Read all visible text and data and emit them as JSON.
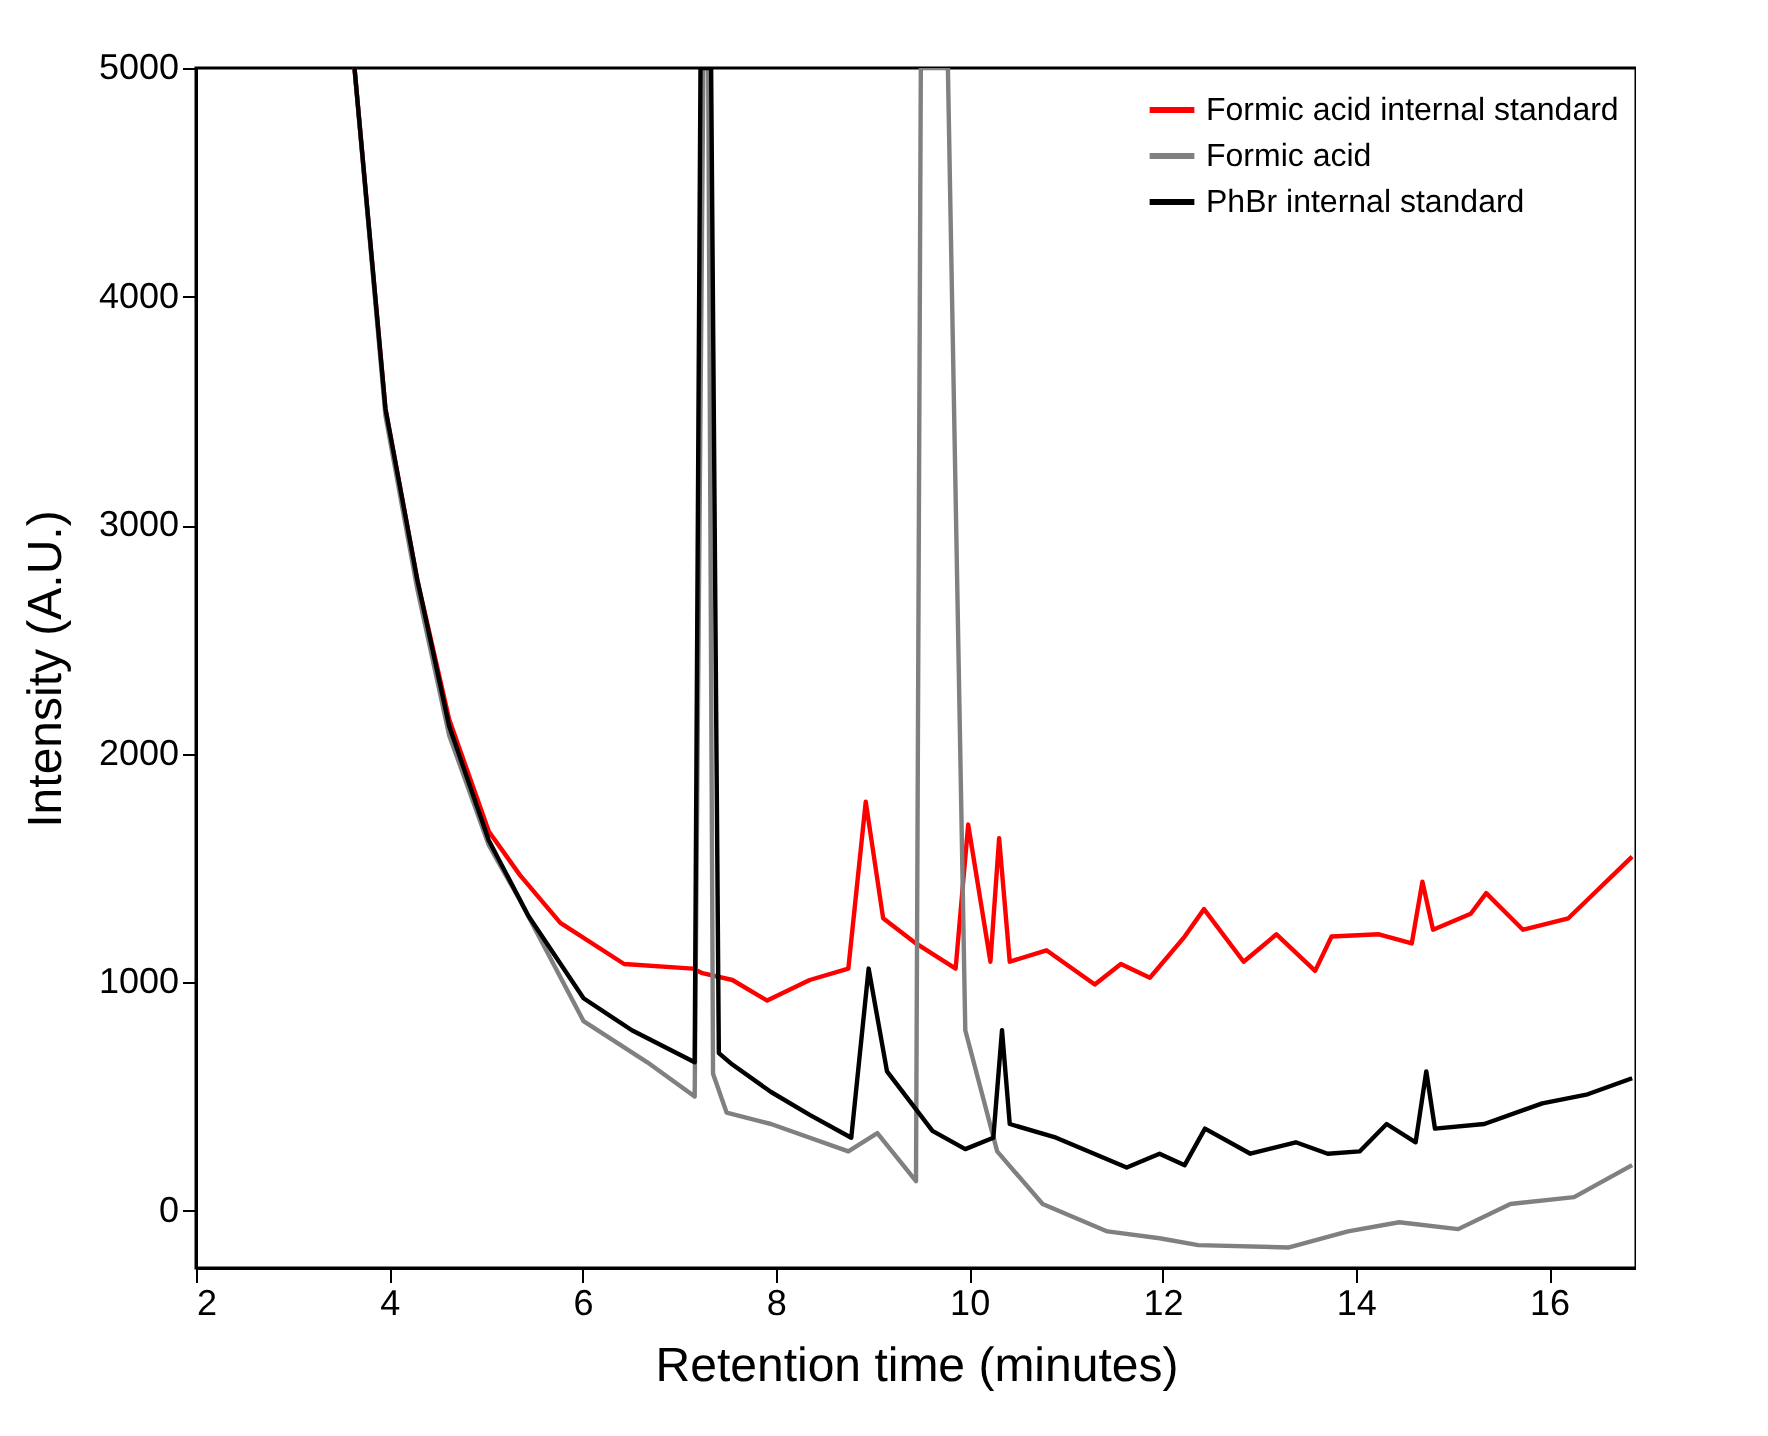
{
  "chart_data": {
    "type": "line",
    "xlabel": "Retention time (minutes)",
    "ylabel": "Intensity (A.U.)",
    "xlim": [
      2,
      16.9
    ],
    "ylim": [
      -250,
      5000
    ],
    "xticks": [
      2,
      4,
      6,
      8,
      10,
      12,
      14,
      16
    ],
    "yticks": [
      0,
      1000,
      2000,
      3000,
      4000,
      5000
    ],
    "grid": false,
    "legend": "top right",
    "line_style": "solid",
    "series": [
      {
        "name": "Formic acid internal standard",
        "color": "#ff0000",
        "x": [
          3.64,
          3.96,
          4.29,
          4.62,
          5.03,
          5.35,
          5.77,
          6.43,
          7.14,
          7.24,
          7.55,
          7.91,
          8.35,
          8.75,
          8.93,
          9.11,
          9.45,
          9.86,
          9.99,
          10.22,
          10.31,
          10.42,
          10.8,
          11.3,
          11.57,
          11.87,
          12.23,
          12.43,
          12.84,
          13.18,
          13.58,
          13.75,
          14.24,
          14.58,
          14.69,
          14.8,
          15.19,
          15.35,
          15.73,
          16.2,
          16.86
        ],
        "values": [
          5000,
          3510,
          2760,
          2150,
          1660,
          1470,
          1260,
          1080,
          1060,
          1040,
          1010,
          920,
          1010,
          1060,
          1790,
          1280,
          1170,
          1060,
          1690,
          1090,
          1630,
          1090,
          1140,
          990,
          1080,
          1020,
          1200,
          1320,
          1090,
          1210,
          1050,
          1200,
          1210,
          1170,
          1440,
          1230,
          1300,
          1390,
          1230,
          1280,
          1550
        ]
      },
      {
        "name": "Formic acid",
        "color": "#808080",
        "x": [
          3.64,
          3.96,
          4.29,
          4.62,
          5.03,
          5.35,
          6.01,
          6.67,
          7.16,
          7.25,
          7.3,
          7.35,
          7.49,
          7.95,
          8.75,
          9.05,
          9.45,
          9.5,
          9.78,
          9.96,
          10.29,
          10.76,
          11.43,
          11.97,
          12.37,
          13.31,
          13.92,
          14.45,
          15.06,
          15.6,
          16.26,
          16.86
        ],
        "values": [
          5000,
          3480,
          2720,
          2080,
          1600,
          1360,
          830,
          650,
          500,
          5000,
          5000,
          600,
          430,
          380,
          260,
          340,
          130,
          5000,
          5000,
          790,
          260,
          30,
          -90,
          -120,
          -150,
          -160,
          -90,
          -50,
          -80,
          30,
          60,
          200
        ]
      },
      {
        "name": "PhBr internal standard",
        "color": "#000000",
        "x": [
          3.64,
          3.96,
          4.29,
          4.62,
          5.03,
          5.44,
          6.01,
          6.51,
          7.16,
          7.22,
          7.33,
          7.41,
          7.55,
          7.95,
          8.35,
          8.78,
          8.96,
          9.15,
          9.62,
          9.96,
          10.25,
          10.34,
          10.42,
          10.9,
          11.63,
          11.97,
          12.23,
          12.44,
          12.91,
          13.38,
          13.71,
          14.04,
          14.32,
          14.62,
          14.73,
          14.82,
          15.33,
          15.93,
          16.4,
          16.86
        ],
        "values": [
          5000,
          3510,
          2760,
          2120,
          1620,
          1290,
          930,
          790,
          650,
          5000,
          5000,
          690,
          640,
          520,
          420,
          320,
          1060,
          610,
          350,
          270,
          320,
          790,
          380,
          320,
          190,
          250,
          200,
          360,
          250,
          300,
          250,
          260,
          380,
          300,
          610,
          360,
          380,
          470,
          510,
          580
        ]
      }
    ]
  }
}
